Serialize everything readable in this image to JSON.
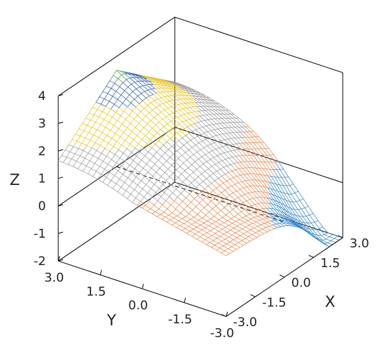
{
  "chart_data": {
    "type": "surface3d",
    "title": "",
    "xlabel": "X",
    "ylabel": "Y",
    "zlabel": "Z",
    "xlim": [
      -3.0,
      3.0
    ],
    "ylim": [
      -3.0,
      3.0
    ],
    "zlim": [
      -2,
      4
    ],
    "x_ticks": [
      "-3.0",
      "-1.5",
      "0.0",
      "1.5",
      "3.0"
    ],
    "y_ticks": [
      "3.0",
      "1.5",
      "0.0",
      "-1.5",
      "-3.0"
    ],
    "z_ticks": [
      "-2",
      "-1",
      "0",
      "1",
      "2",
      "3",
      "4"
    ],
    "grid": false,
    "render": "wireframe",
    "surface": {
      "peak": {
        "x": -3.0,
        "y": 0.0,
        "z": 3.5
      },
      "right_corner": {
        "x": 3.0,
        "y": -3.0,
        "z": -2.0
      },
      "back_left_edge_z": 1.5
    },
    "color_bands": [
      {
        "z_from": -2.0,
        "z_to": 0.0,
        "color": "#3a86c8"
      },
      {
        "z_from": 0.0,
        "z_to": 1.0,
        "color": "#e8874f"
      },
      {
        "z_from": 1.0,
        "z_to": 2.0,
        "color": "#9a9a9a"
      },
      {
        "z_from": 2.0,
        "z_to": 2.8,
        "color": "#e6c21f"
      },
      {
        "z_from": 2.8,
        "z_to": 3.3,
        "color": "#2f5fb0"
      },
      {
        "z_from": 3.3,
        "z_to": 3.6,
        "color": "#3f9a3f"
      }
    ]
  }
}
